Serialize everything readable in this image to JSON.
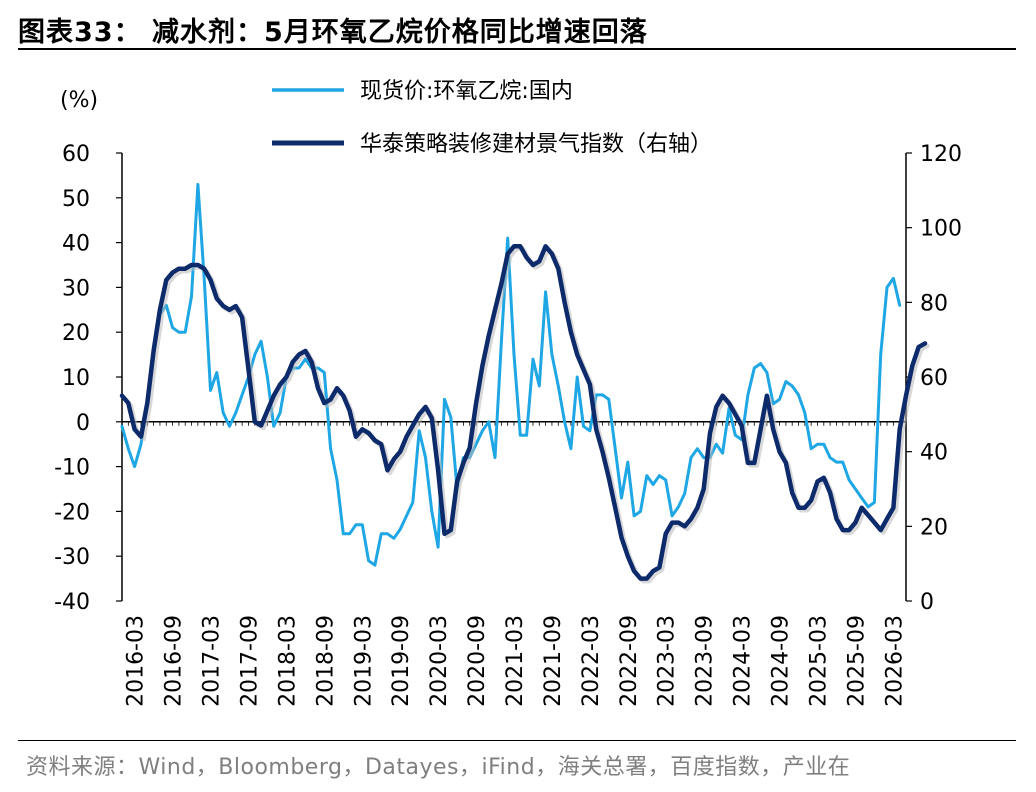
{
  "title": "图表33：  减水剂：5月环氧乙烷价格同比增速回落",
  "source": "资料来源：Wind，Bloomberg，Datayes，iFind，海关总署，百度指数，产业在",
  "chart_data": {
    "type": "line",
    "left_unit": "(%)",
    "x_tick_labels": [
      "2016-03",
      "2016-09",
      "2017-03",
      "2017-09",
      "2018-03",
      "2018-09",
      "2019-03",
      "2019-09",
      "2020-03",
      "2020-09",
      "2021-03",
      "2021-09",
      "2022-03",
      "2022-09",
      "2023-03",
      "2023-09",
      "2024-03",
      "2024-09",
      "2025-03",
      "2025-09",
      "2026-03"
    ],
    "x_range": [
      "2016-01",
      "2026-05"
    ],
    "y_left": {
      "min": -40,
      "max": 60,
      "ticks": [
        -40,
        -30,
        -20,
        -10,
        0,
        10,
        20,
        30,
        40,
        50,
        60
      ]
    },
    "y_right": {
      "min": 0,
      "max": 120,
      "ticks": [
        0,
        20,
        40,
        60,
        80,
        100,
        120
      ]
    },
    "legend_placement": "top-center",
    "colors": {
      "series_1": "#1ea7e4",
      "series_2": "#0d2a6b"
    },
    "series": [
      {
        "name": "现货价:环氧乙烷:国内",
        "axis": "left",
        "points": [
          [
            "2016-01",
            -1
          ],
          [
            "2016-02",
            -6
          ],
          [
            "2016-03",
            -10
          ],
          [
            "2016-04",
            -5
          ],
          [
            "2016-05",
            5
          ],
          [
            "2016-06",
            15
          ],
          [
            "2016-07",
            24
          ],
          [
            "2016-08",
            26
          ],
          [
            "2016-09",
            21
          ],
          [
            "2016-10",
            20
          ],
          [
            "2016-11",
            20
          ],
          [
            "2016-12",
            28
          ],
          [
            "2017-01",
            53
          ],
          [
            "2017-02",
            32
          ],
          [
            "2017-03",
            7
          ],
          [
            "2017-04",
            11
          ],
          [
            "2017-05",
            2
          ],
          [
            "2017-06",
            -1
          ],
          [
            "2017-07",
            2
          ],
          [
            "2017-08",
            6
          ],
          [
            "2017-09",
            10
          ],
          [
            "2017-10",
            15
          ],
          [
            "2017-11",
            18
          ],
          [
            "2017-12",
            10
          ],
          [
            "2018-01",
            -1
          ],
          [
            "2018-02",
            2
          ],
          [
            "2018-03",
            10
          ],
          [
            "2018-04",
            12
          ],
          [
            "2018-05",
            12
          ],
          [
            "2018-06",
            14
          ],
          [
            "2018-07",
            12
          ],
          [
            "2018-08",
            12
          ],
          [
            "2018-09",
            11
          ],
          [
            "2018-10",
            -6
          ],
          [
            "2018-11",
            -13
          ],
          [
            "2018-12",
            -25
          ],
          [
            "2019-01",
            -25
          ],
          [
            "2019-02",
            -23
          ],
          [
            "2019-03",
            -23
          ],
          [
            "2019-04",
            -31
          ],
          [
            "2019-05",
            -32
          ],
          [
            "2019-06",
            -25
          ],
          [
            "2019-07",
            -25
          ],
          [
            "2019-08",
            -26
          ],
          [
            "2019-09",
            -24
          ],
          [
            "2019-10",
            -21
          ],
          [
            "2019-11",
            -18
          ],
          [
            "2019-12",
            -2
          ],
          [
            "2020-01",
            -8
          ],
          [
            "2020-02",
            -20
          ],
          [
            "2020-03",
            -28
          ],
          [
            "2020-04",
            5
          ],
          [
            "2020-05",
            1
          ],
          [
            "2020-06",
            -15
          ],
          [
            "2020-07",
            -8
          ],
          [
            "2020-08",
            -8
          ],
          [
            "2020-09",
            -5
          ],
          [
            "2020-10",
            -2
          ],
          [
            "2020-11",
            0
          ],
          [
            "2020-12",
            -8
          ],
          [
            "2021-01",
            18
          ],
          [
            "2021-02",
            41
          ],
          [
            "2021-03",
            15
          ],
          [
            "2021-04",
            -3
          ],
          [
            "2021-05",
            -3
          ],
          [
            "2021-06",
            14
          ],
          [
            "2021-07",
            8
          ],
          [
            "2021-08",
            29
          ],
          [
            "2021-09",
            15
          ],
          [
            "2021-10",
            8
          ],
          [
            "2021-11",
            0
          ],
          [
            "2021-12",
            -6
          ],
          [
            "2022-01",
            10
          ],
          [
            "2022-02",
            -1
          ],
          [
            "2022-03",
            -2
          ],
          [
            "2022-04",
            6
          ],
          [
            "2022-05",
            6
          ],
          [
            "2022-06",
            5
          ],
          [
            "2022-07",
            -6
          ],
          [
            "2022-08",
            -17
          ],
          [
            "2022-09",
            -9
          ],
          [
            "2022-10",
            -21
          ],
          [
            "2022-11",
            -20
          ],
          [
            "2022-12",
            -12
          ],
          [
            "2023-01",
            -14
          ],
          [
            "2023-02",
            -12
          ],
          [
            "2023-03",
            -13
          ],
          [
            "2023-04",
            -21
          ],
          [
            "2023-05",
            -19
          ],
          [
            "2023-06",
            -16
          ],
          [
            "2023-07",
            -8
          ],
          [
            "2023-08",
            -6
          ],
          [
            "2023-09",
            -8
          ],
          [
            "2023-10",
            -8
          ],
          [
            "2023-11",
            -5
          ],
          [
            "2023-12",
            -7
          ],
          [
            "2024-01",
            3
          ],
          [
            "2024-02",
            -3
          ],
          [
            "2024-03",
            -4
          ],
          [
            "2024-04",
            6
          ],
          [
            "2024-05",
            12
          ],
          [
            "2024-06",
            13
          ],
          [
            "2024-07",
            11
          ],
          [
            "2024-08",
            4
          ],
          [
            "2024-09",
            5
          ],
          [
            "2024-10",
            9
          ],
          [
            "2024-11",
            8
          ],
          [
            "2024-12",
            6
          ],
          [
            "2025-01",
            2
          ],
          [
            "2025-02",
            -6
          ],
          [
            "2025-03",
            -5
          ],
          [
            "2025-04",
            -5
          ],
          [
            "2025-05",
            -8
          ],
          [
            "2025-06",
            -9
          ],
          [
            "2025-07",
            -9
          ],
          [
            "2025-08",
            -13
          ],
          [
            "2025-09",
            -15
          ],
          [
            "2025-10",
            -17
          ],
          [
            "2025-11",
            -19
          ],
          [
            "2025-12",
            -18
          ],
          [
            "2026-01",
            15
          ],
          [
            "2026-02",
            30
          ],
          [
            "2026-03",
            32
          ],
          [
            "2026-04",
            26
          ]
        ]
      },
      {
        "name": "华泰策略装修建材景气指数（右轴）",
        "axis": "right",
        "points": [
          [
            "2016-01",
            55
          ],
          [
            "2016-02",
            53
          ],
          [
            "2016-03",
            46
          ],
          [
            "2016-04",
            44
          ],
          [
            "2016-05",
            53
          ],
          [
            "2016-06",
            67
          ],
          [
            "2016-07",
            78
          ],
          [
            "2016-08",
            86
          ],
          [
            "2016-09",
            88
          ],
          [
            "2016-10",
            89
          ],
          [
            "2016-11",
            89
          ],
          [
            "2016-12",
            90
          ],
          [
            "2017-01",
            90
          ],
          [
            "2017-02",
            89
          ],
          [
            "2017-03",
            86
          ],
          [
            "2017-04",
            81
          ],
          [
            "2017-05",
            79
          ],
          [
            "2017-06",
            78
          ],
          [
            "2017-07",
            79
          ],
          [
            "2017-08",
            76
          ],
          [
            "2017-09",
            62
          ],
          [
            "2017-10",
            48
          ],
          [
            "2017-11",
            47
          ],
          [
            "2017-12",
            51
          ],
          [
            "2018-01",
            55
          ],
          [
            "2018-02",
            58
          ],
          [
            "2018-03",
            60
          ],
          [
            "2018-04",
            64
          ],
          [
            "2018-05",
            66
          ],
          [
            "2018-06",
            67
          ],
          [
            "2018-07",
            64
          ],
          [
            "2018-08",
            57
          ],
          [
            "2018-09",
            53
          ],
          [
            "2018-10",
            54
          ],
          [
            "2018-11",
            57
          ],
          [
            "2018-12",
            55
          ],
          [
            "2019-01",
            51
          ],
          [
            "2019-02",
            44
          ],
          [
            "2019-03",
            46
          ],
          [
            "2019-04",
            45
          ],
          [
            "2019-05",
            43
          ],
          [
            "2019-06",
            42
          ],
          [
            "2019-07",
            35
          ],
          [
            "2019-08",
            38
          ],
          [
            "2019-09",
            40
          ],
          [
            "2019-10",
            44
          ],
          [
            "2019-11",
            47
          ],
          [
            "2019-12",
            50
          ],
          [
            "2020-01",
            52
          ],
          [
            "2020-02",
            49
          ],
          [
            "2020-03",
            35
          ],
          [
            "2020-04",
            18
          ],
          [
            "2020-05",
            19
          ],
          [
            "2020-06",
            32
          ],
          [
            "2020-07",
            37
          ],
          [
            "2020-08",
            41
          ],
          [
            "2020-09",
            53
          ],
          [
            "2020-10",
            63
          ],
          [
            "2020-11",
            71
          ],
          [
            "2020-12",
            78
          ],
          [
            "2021-01",
            85
          ],
          [
            "2021-02",
            93
          ],
          [
            "2021-03",
            95
          ],
          [
            "2021-04",
            95
          ],
          [
            "2021-05",
            92
          ],
          [
            "2021-06",
            90
          ],
          [
            "2021-07",
            91
          ],
          [
            "2021-08",
            95
          ],
          [
            "2021-09",
            93
          ],
          [
            "2021-10",
            89
          ],
          [
            "2021-11",
            80
          ],
          [
            "2021-12",
            72
          ],
          [
            "2022-01",
            66
          ],
          [
            "2022-02",
            62
          ],
          [
            "2022-03",
            58
          ],
          [
            "2022-04",
            46
          ],
          [
            "2022-05",
            40
          ],
          [
            "2022-06",
            33
          ],
          [
            "2022-07",
            25
          ],
          [
            "2022-08",
            17
          ],
          [
            "2022-09",
            12
          ],
          [
            "2022-10",
            8
          ],
          [
            "2022-11",
            6
          ],
          [
            "2022-12",
            6
          ],
          [
            "2023-01",
            8
          ],
          [
            "2023-02",
            9
          ],
          [
            "2023-03",
            18
          ],
          [
            "2023-04",
            21
          ],
          [
            "2023-05",
            21
          ],
          [
            "2023-06",
            20
          ],
          [
            "2023-07",
            22
          ],
          [
            "2023-08",
            25
          ],
          [
            "2023-09",
            30
          ],
          [
            "2023-10",
            45
          ],
          [
            "2023-11",
            52
          ],
          [
            "2023-12",
            55
          ],
          [
            "2024-01",
            53
          ],
          [
            "2024-02",
            50
          ],
          [
            "2024-03",
            47
          ],
          [
            "2024-04",
            37
          ],
          [
            "2024-05",
            37
          ],
          [
            "2024-06",
            46
          ],
          [
            "2024-07",
            55
          ],
          [
            "2024-08",
            46
          ],
          [
            "2024-09",
            40
          ],
          [
            "2024-10",
            37
          ],
          [
            "2024-11",
            29
          ],
          [
            "2024-12",
            25
          ],
          [
            "2025-01",
            25
          ],
          [
            "2025-02",
            27
          ],
          [
            "2025-03",
            32
          ],
          [
            "2025-04",
            33
          ],
          [
            "2025-05",
            29
          ],
          [
            "2025-06",
            22
          ],
          [
            "2025-07",
            19
          ],
          [
            "2025-08",
            19
          ],
          [
            "2025-09",
            21
          ],
          [
            "2025-10",
            25
          ],
          [
            "2025-11",
            23
          ],
          [
            "2025-12",
            21
          ],
          [
            "2026-01",
            19
          ],
          [
            "2026-02",
            22
          ],
          [
            "2026-03",
            25
          ],
          [
            "2026-04",
            46
          ],
          [
            "2026-05",
            55
          ],
          [
            "2026-06",
            63
          ],
          [
            "2026-07",
            68
          ],
          [
            "2026-08",
            69
          ]
        ]
      }
    ]
  }
}
